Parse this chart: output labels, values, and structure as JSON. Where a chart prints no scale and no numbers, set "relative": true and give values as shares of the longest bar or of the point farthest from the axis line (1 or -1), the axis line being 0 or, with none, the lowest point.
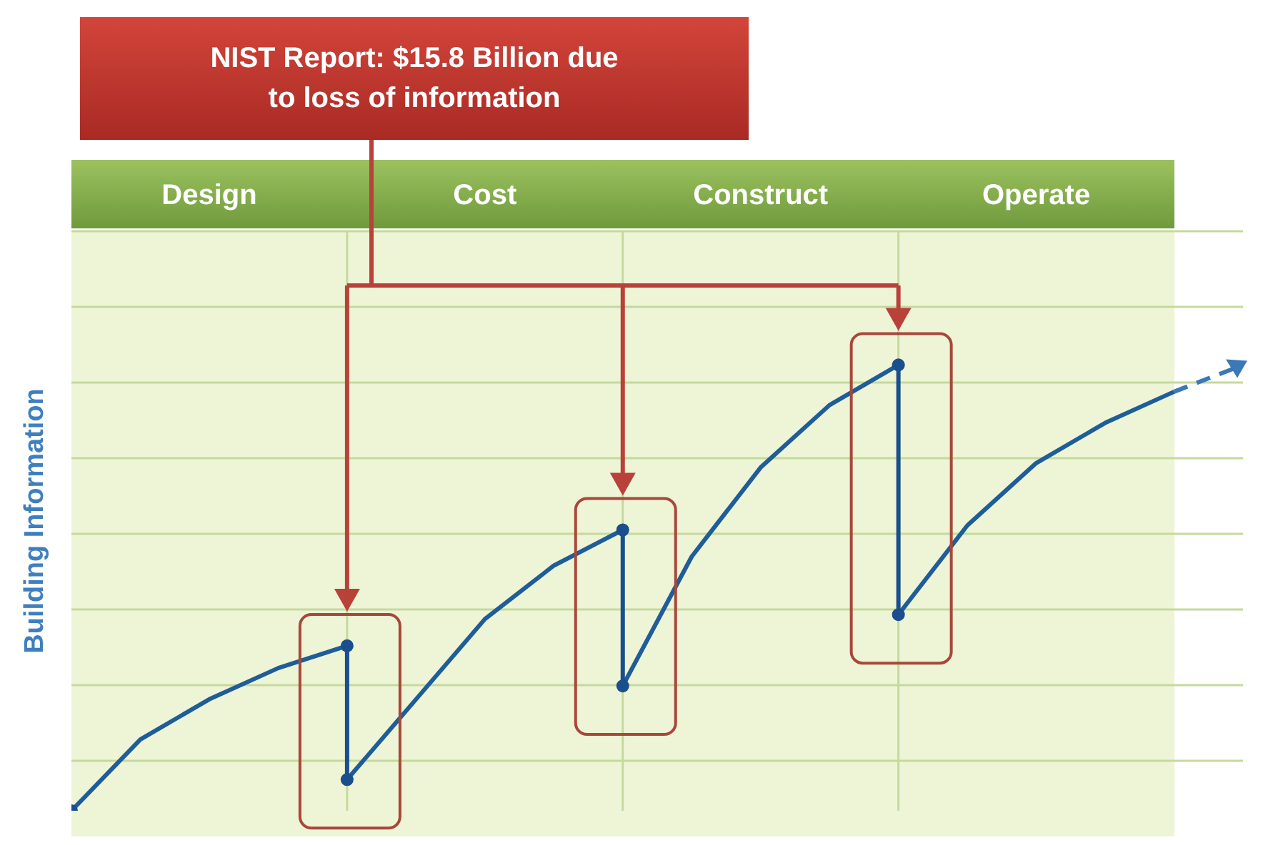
{
  "chart_data": {
    "type": "line",
    "title": "NIST Report: $15.8 Billion due to loss of information",
    "ylabel": "Building Information",
    "categories": [
      null,
      null,
      "Design",
      null,
      null,
      null,
      "Cost",
      null,
      null,
      null,
      "Construct",
      null,
      null,
      null,
      "Operate",
      null,
      null,
      null
    ],
    "relative": true,
    "grid": true,
    "series": [
      {
        "color": "#1f5d99",
        "line_style": "solid",
        "values": [
          0,
          0.16,
          0.25,
          0.32,
          0.37,
          null,
          null,
          null,
          0.28,
          0.57,
          0.77,
          0.91,
          1,
          null,
          null,
          null,
          null,
          null
        ]
      },
      {
        "color": "#1f5d99",
        "line_style": "solid",
        "values": [
          null,
          null,
          null,
          null,
          0.07,
          0.25,
          0.43,
          0.55,
          0.63,
          null,
          null,
          null,
          0.44,
          0.64,
          0.78,
          0.87,
          0.94,
          null
        ]
      },
      {
        "color": "#3a78b8",
        "line_style": "dashed",
        "values": [
          null,
          null,
          null,
          null,
          null,
          null,
          null,
          null,
          null,
          null,
          null,
          null,
          null,
          null,
          null,
          null,
          0.94,
          1
        ]
      },
      {
        "type": "scatter",
        "color": "#1a4e8c",
        "marker": "circle",
        "values": [
          0,
          null,
          null,
          null,
          0.37,
          null,
          null,
          null,
          0.63,
          null,
          null,
          null,
          1,
          null,
          null,
          null,
          null,
          null
        ]
      },
      {
        "type": "scatter",
        "color": "#1a4e8c",
        "marker": "circle",
        "values": [
          null,
          null,
          null,
          null,
          0.07,
          null,
          null,
          null,
          0.28,
          null,
          null,
          null,
          0.44,
          null,
          null,
          null,
          null,
          null
        ]
      }
    ]
  }
}
